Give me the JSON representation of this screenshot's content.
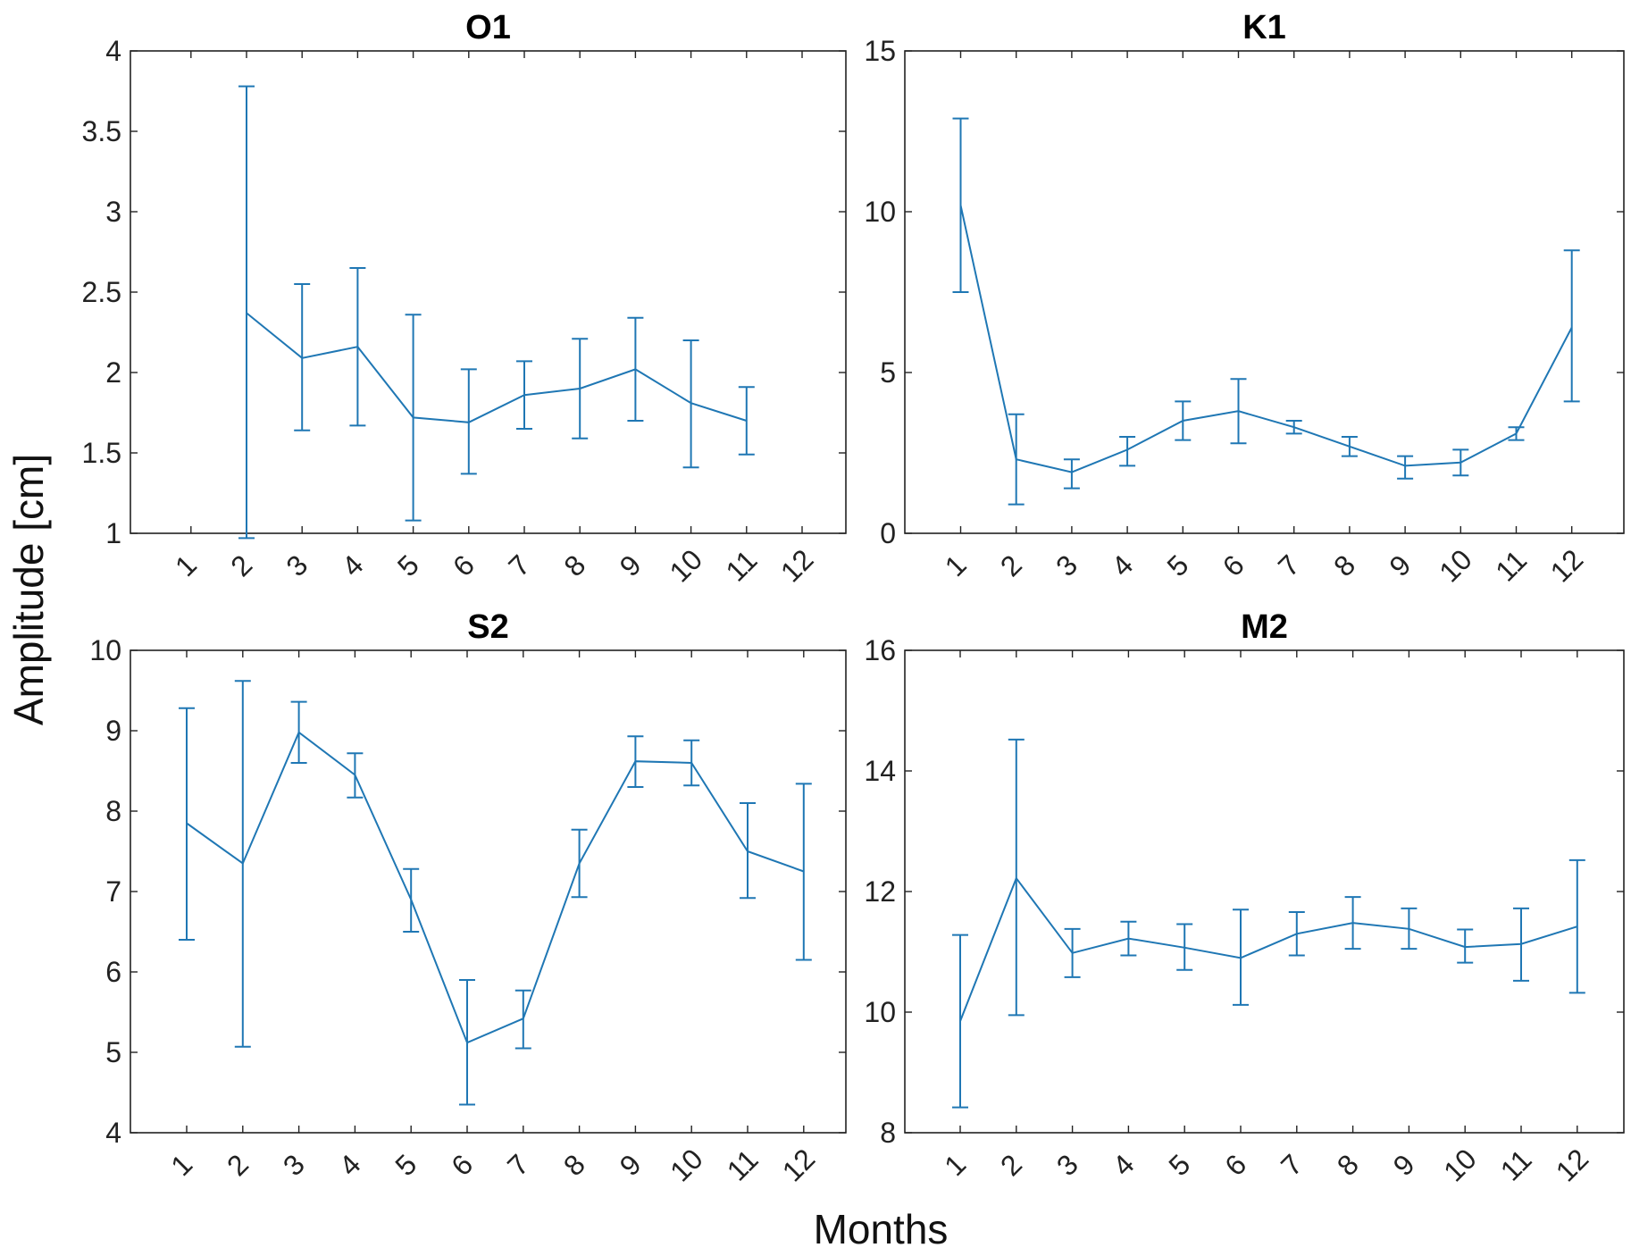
{
  "figure": {
    "ylabel": "Amplitude [cm]",
    "xlabel": "Months"
  },
  "chart_data": [
    {
      "type": "line",
      "title": "O1",
      "categories": [
        "1",
        "2",
        "3",
        "4",
        "5",
        "6",
        "7",
        "8",
        "9",
        "10",
        "11",
        "12"
      ],
      "ylim": [
        1,
        4
      ],
      "yticks": [
        "1",
        "1.5",
        "2",
        "2.5",
        "3",
        "3.5",
        "4"
      ],
      "series": [
        {
          "name": "O1",
          "values": [
            null,
            2.37,
            2.09,
            2.16,
            1.72,
            1.69,
            1.86,
            1.9,
            2.02,
            1.81,
            1.7,
            null
          ],
          "lower": [
            null,
            0.97,
            1.64,
            1.67,
            1.08,
            1.37,
            1.65,
            1.59,
            1.7,
            1.41,
            1.49,
            null
          ],
          "upper": [
            null,
            3.78,
            2.55,
            2.65,
            2.36,
            2.02,
            2.07,
            2.21,
            2.34,
            2.2,
            1.91,
            null
          ]
        }
      ]
    },
    {
      "type": "line",
      "title": "K1",
      "categories": [
        "1",
        "2",
        "3",
        "4",
        "5",
        "6",
        "7",
        "8",
        "9",
        "10",
        "11",
        "12"
      ],
      "ylim": [
        0,
        15
      ],
      "yticks": [
        "0",
        "5",
        "10",
        "15"
      ],
      "series": [
        {
          "name": "K1",
          "values": [
            10.2,
            2.3,
            1.9,
            2.6,
            3.5,
            3.8,
            3.3,
            2.7,
            2.1,
            2.2,
            3.1,
            6.4
          ],
          "lower": [
            7.5,
            0.9,
            1.4,
            2.1,
            2.9,
            2.8,
            3.1,
            2.4,
            1.7,
            1.8,
            2.9,
            4.1
          ],
          "upper": [
            12.9,
            3.7,
            2.3,
            3.0,
            4.1,
            4.8,
            3.5,
            3.0,
            2.4,
            2.6,
            3.3,
            8.8
          ]
        }
      ]
    },
    {
      "type": "line",
      "title": "S2",
      "categories": [
        "1",
        "2",
        "3",
        "4",
        "5",
        "6",
        "7",
        "8",
        "9",
        "10",
        "11",
        "12"
      ],
      "ylim": [
        4,
        10
      ],
      "yticks": [
        "4",
        "5",
        "6",
        "7",
        "8",
        "9",
        "10"
      ],
      "series": [
        {
          "name": "S2",
          "values": [
            7.85,
            7.35,
            8.98,
            8.45,
            6.9,
            5.12,
            5.42,
            7.35,
            8.62,
            8.6,
            7.5,
            7.25
          ],
          "lower": [
            6.4,
            5.07,
            8.6,
            8.17,
            6.5,
            4.35,
            5.05,
            6.93,
            8.3,
            8.32,
            6.92,
            6.15
          ],
          "upper": [
            9.28,
            9.62,
            9.36,
            8.72,
            7.28,
            5.9,
            5.77,
            7.77,
            8.93,
            8.88,
            8.1,
            8.34
          ]
        }
      ]
    },
    {
      "type": "line",
      "title": "M2",
      "categories": [
        "1",
        "2",
        "3",
        "4",
        "5",
        "6",
        "7",
        "8",
        "9",
        "10",
        "11",
        "12"
      ],
      "ylim": [
        8,
        16
      ],
      "yticks": [
        "8",
        "10",
        "12",
        "14",
        "16"
      ],
      "series": [
        {
          "name": "M2",
          "values": [
            9.85,
            12.22,
            10.98,
            11.22,
            11.07,
            10.9,
            11.3,
            11.48,
            11.38,
            11.08,
            11.13,
            11.42
          ],
          "lower": [
            8.42,
            9.95,
            10.58,
            10.94,
            10.7,
            10.12,
            10.94,
            11.05,
            11.05,
            10.82,
            10.52,
            10.32
          ],
          "upper": [
            11.28,
            14.52,
            11.38,
            11.5,
            11.46,
            11.7,
            11.66,
            11.91,
            11.72,
            11.37,
            11.72,
            12.52
          ]
        }
      ]
    }
  ]
}
